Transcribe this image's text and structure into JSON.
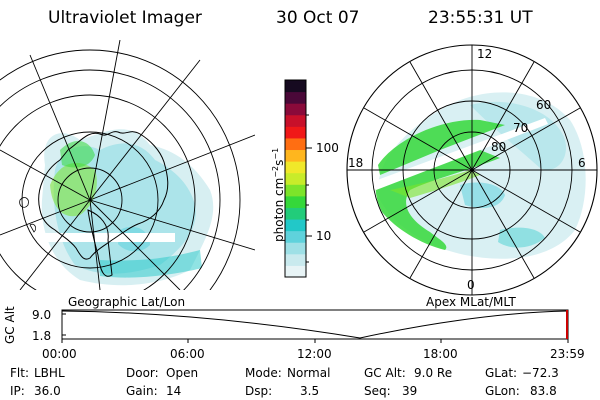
{
  "header": {
    "title": "Ultraviolet Imager",
    "date": "30 Oct 07",
    "time": "23:55:31 UT"
  },
  "left_panel": {
    "caption": "Geographic Lat/Lon"
  },
  "right_panel": {
    "caption": "Apex MLat/MLT",
    "mlt_labels": [
      "12",
      "18",
      "6",
      "0"
    ],
    "lat_labels": [
      "60",
      "70",
      "80"
    ]
  },
  "colorbar": {
    "unit_label": "photon cm",
    "unit_exp1": "−2",
    "unit_mid": "s",
    "unit_exp2": "−1",
    "ticks": [
      "100",
      "10"
    ],
    "colors": [
      "#e8f4f6",
      "#c9eaee",
      "#9ee0e6",
      "#5fd2dc",
      "#22c8c8",
      "#22cc7a",
      "#35d83a",
      "#7de42a",
      "#c8ec2a",
      "#f0e82a",
      "#ffb61e",
      "#ff6e12",
      "#f01818",
      "#c8102a",
      "#8a0a3a",
      "#4a0838",
      "#160a20"
    ]
  },
  "timeline": {
    "ylabel": "GC Alt",
    "yticks": [
      "9.0",
      "1.8"
    ],
    "xticks": [
      "00:00",
      "06:00",
      "12:00",
      "18:00",
      "23:59"
    ]
  },
  "info": {
    "row1": [
      {
        "label": "Flt:",
        "value": "LBHL"
      },
      {
        "label": "Door:",
        "value": "Open"
      },
      {
        "label": "Mode:",
        "value": "Normal"
      },
      {
        "label": "GC Alt:",
        "value": "9.0 Re"
      },
      {
        "label": "GLat:",
        "value": "−72.3"
      }
    ],
    "row2": [
      {
        "label": "IP:",
        "value": "36.0"
      },
      {
        "label": "Gain:",
        "value": "14"
      },
      {
        "label": "Dsp:",
        "value": "3.5"
      },
      {
        "label": "Seq:",
        "value": "39"
      },
      {
        "label": "GLon:",
        "value": "83.8"
      }
    ]
  }
}
